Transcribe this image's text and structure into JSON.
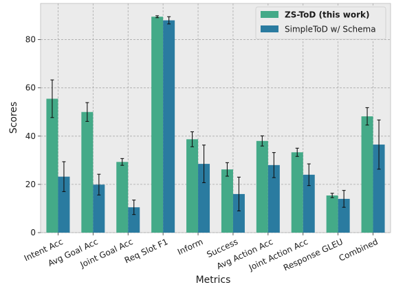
{
  "chart_data": {
    "type": "bar",
    "title": "",
    "xlabel": "Metrics",
    "ylabel": "Scores",
    "ylim": [
      0,
      95
    ],
    "yticks": [
      0,
      20,
      40,
      60,
      80
    ],
    "grid": true,
    "legend_position": "top-right",
    "categories": [
      "Intent Acc",
      "Avg Goal Acc",
      "Joint Goal Acc",
      "Req Slot F1",
      "Inform",
      "Success",
      "Avg Action Acc",
      "Joint Action Acc",
      "Response GLEU",
      "Combined"
    ],
    "series": [
      {
        "name": "ZS-ToD (this work)",
        "color": "#44aa88",
        "legend_bold": true,
        "values": [
          55.5,
          50.0,
          29.3,
          89.5,
          38.7,
          26.2,
          38.0,
          33.3,
          15.4,
          48.2
        ],
        "errors": [
          7.8,
          3.9,
          1.4,
          0.4,
          3.1,
          2.8,
          2.1,
          1.7,
          0.9,
          3.6
        ]
      },
      {
        "name": "SimpleToD w/ Schema",
        "color": "#2a7ba0",
        "legend_bold": false,
        "values": [
          23.2,
          19.9,
          10.5,
          88.0,
          28.5,
          16.0,
          28.0,
          24.0,
          14.0,
          36.5
        ],
        "errors": [
          6.2,
          4.3,
          3.0,
          1.5,
          7.8,
          7.0,
          5.2,
          4.5,
          3.5,
          10.2
        ]
      }
    ]
  }
}
